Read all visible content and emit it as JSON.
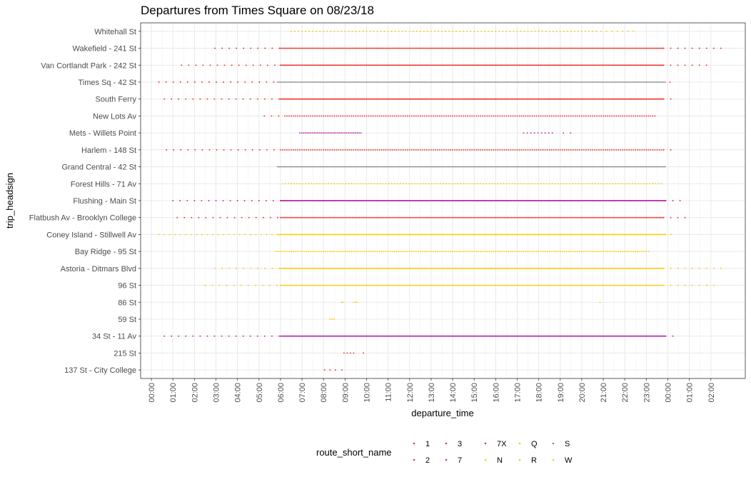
{
  "chart_data": {
    "type": "scatter",
    "title": "Departures from Times Square on 08/23/18",
    "xlabel": "departure_time",
    "ylabel": "trip_headsign",
    "x_ticks": [
      "00:00",
      "01:00",
      "02:00",
      "03:00",
      "04:00",
      "05:00",
      "06:00",
      "07:00",
      "08:00",
      "09:00",
      "10:00",
      "11:00",
      "12:00",
      "13:00",
      "14:00",
      "15:00",
      "16:00",
      "17:00",
      "18:00",
      "19:00",
      "20:00",
      "21:00",
      "22:00",
      "23:00",
      "00:00",
      "01:00",
      "02:00"
    ],
    "xlim_hours": [
      -0.5,
      27.6
    ],
    "categories": [
      "137 St - City College",
      "215 St",
      "34 St - 11 Av",
      "59 St",
      "86 St",
      "96 St",
      "Astoria - Ditmars Blvd",
      "Bay Ridge - 95 St",
      "Coney Island - Stillwell Av",
      "Flatbush Av - Brooklyn College",
      "Flushing - Main St",
      "Forest Hills - 71 Av",
      "Grand Central - 42 St",
      "Harlem - 148 St",
      "Mets - Willets Point",
      "New Lots Av",
      "South Ferry",
      "Times Sq - 42 St",
      "Van Cortlandt Park - 242 St",
      "Wakefield - 241 St",
      "Whitehall St"
    ],
    "grid": true,
    "legend": {
      "title": "route_short_name",
      "position": "bottom",
      "entries": [
        {
          "name": "1",
          "color": "#ee352e"
        },
        {
          "name": "2",
          "color": "#ee352e"
        },
        {
          "name": "3",
          "color": "#ee352e"
        },
        {
          "name": "7",
          "color": "#b933ad"
        },
        {
          "name": "7X",
          "color": "#b933ad"
        },
        {
          "name": "N",
          "color": "#fccc0a"
        },
        {
          "name": "Q",
          "color": "#fccc0a"
        },
        {
          "name": "R",
          "color": "#fccc0a"
        },
        {
          "name": "S",
          "color": "#808183"
        },
        {
          "name": "W",
          "color": "#fccc0a"
        }
      ]
    },
    "series": [
      {
        "headsign": "Whitehall St",
        "route": "R",
        "color": "#fccc0a",
        "segments": [
          {
            "from": 6.5,
            "to": 20.75,
            "interval_min": 10
          },
          {
            "from": 20.9,
            "to": 22.4,
            "interval_min": 15
          }
        ]
      },
      {
        "headsign": "Wakefield - 241 St",
        "route": "2",
        "color": "#ee352e",
        "segments": [
          {
            "from": 2.95,
            "to": 6.0,
            "interval_min": 20
          },
          {
            "from": 6.0,
            "to": 23.8,
            "interval_min": 4
          },
          {
            "from": 23.8,
            "to": 26.6,
            "interval_min": 20
          }
        ]
      },
      {
        "headsign": "Van Cortlandt Park - 242 St",
        "route": "1",
        "color": "#ee352e",
        "segments": [
          {
            "from": 1.4,
            "to": 6.0,
            "interval_min": 20
          },
          {
            "from": 6.0,
            "to": 23.8,
            "interval_min": 3
          },
          {
            "from": 23.8,
            "to": 25.9,
            "interval_min": 20
          }
        ]
      },
      {
        "headsign": "Times Sq - 42 St",
        "route": "1",
        "color": "#ee352e",
        "segments": [
          {
            "from": 0.35,
            "to": 5.8,
            "interval_min": 20
          },
          {
            "from": 24.1,
            "to": 24.1,
            "interval_min": 20
          }
        ]
      },
      {
        "headsign": "Times Sq - 42 St",
        "route": "S",
        "color": "#808183",
        "segments": [
          {
            "from": 5.85,
            "to": 23.9,
            "interval_min": 1
          }
        ]
      },
      {
        "headsign": "South Ferry",
        "route": "1",
        "color": "#ee352e",
        "segments": [
          {
            "from": 0.6,
            "to": 6.0,
            "interval_min": 20
          },
          {
            "from": 6.0,
            "to": 23.8,
            "interval_min": 3
          },
          {
            "from": 23.8,
            "to": 24.4,
            "interval_min": 20
          }
        ]
      },
      {
        "headsign": "New Lots Av",
        "route": "3",
        "color": "#ee352e",
        "segments": [
          {
            "from": 5.25,
            "to": 6.2,
            "interval_min": 20
          },
          {
            "from": 6.2,
            "to": 23.4,
            "interval_min": 6
          }
        ]
      },
      {
        "headsign": "Mets - Willets Point",
        "route": "7X",
        "color": "#b933ad",
        "segments": [
          {
            "from": 6.9,
            "to": 9.8,
            "interval_min": 5
          },
          {
            "from": 17.3,
            "to": 18.7,
            "interval_min": 10
          },
          {
            "from": 19.15,
            "to": 19.5,
            "interval_min": 20
          }
        ]
      },
      {
        "headsign": "Harlem - 148 St",
        "route": "3",
        "color": "#ee352e",
        "segments": [
          {
            "from": 0.7,
            "to": 6.0,
            "interval_min": 20
          },
          {
            "from": 6.0,
            "to": 23.8,
            "interval_min": 6
          },
          {
            "from": 23.8,
            "to": 24.4,
            "interval_min": 20
          }
        ]
      },
      {
        "headsign": "Grand Central - 42 St",
        "route": "S",
        "color": "#808183",
        "segments": [
          {
            "from": 5.85,
            "to": 23.9,
            "interval_min": 1
          }
        ]
      },
      {
        "headsign": "Forest Hills - 71 Av",
        "route": "R",
        "color": "#fccc0a",
        "segments": [
          {
            "from": 6.1,
            "to": 23.7,
            "interval_min": 8
          }
        ]
      },
      {
        "headsign": "Flushing - Main St",
        "route": "7",
        "color": "#b933ad",
        "segments": [
          {
            "from": 1.0,
            "to": 6.0,
            "interval_min": 20
          },
          {
            "from": 6.0,
            "to": 23.9,
            "interval_min": 2
          },
          {
            "from": 23.9,
            "to": 24.8,
            "interval_min": 20
          }
        ]
      },
      {
        "headsign": "Flatbush Av - Brooklyn College",
        "route": "2",
        "color": "#ee352e",
        "segments": [
          {
            "from": 1.2,
            "to": 6.0,
            "interval_min": 20
          },
          {
            "from": 6.0,
            "to": 23.8,
            "interval_min": 4
          },
          {
            "from": 23.8,
            "to": 24.9,
            "interval_min": 20
          }
        ]
      },
      {
        "headsign": "Coney Island - Stillwell Av",
        "route": "N",
        "color": "#fccc0a",
        "segments": [
          {
            "from": 0.35,
            "to": 5.9,
            "interval_min": 15
          },
          {
            "from": 5.9,
            "to": 23.9,
            "interval_min": 3
          },
          {
            "from": 23.9,
            "to": 24.2,
            "interval_min": 15
          }
        ]
      },
      {
        "headsign": "Bay Ridge - 95 St",
        "route": "R",
        "color": "#fccc0a",
        "segments": [
          {
            "from": 5.8,
            "to": 23.1,
            "interval_min": 6
          }
        ]
      },
      {
        "headsign": "Astoria - Ditmars Blvd",
        "route": "N",
        "color": "#fccc0a",
        "segments": [
          {
            "from": 2.95,
            "to": 6.0,
            "interval_min": 20
          },
          {
            "from": 6.0,
            "to": 23.8,
            "interval_min": 3
          },
          {
            "from": 23.8,
            "to": 26.6,
            "interval_min": 20
          }
        ]
      },
      {
        "headsign": "96 St",
        "route": "Q",
        "color": "#fccc0a",
        "segments": [
          {
            "from": 2.5,
            "to": 6.0,
            "interval_min": 20
          },
          {
            "from": 6.0,
            "to": 23.8,
            "interval_min": 4
          },
          {
            "from": 23.8,
            "to": 26.2,
            "interval_min": 20
          }
        ]
      },
      {
        "headsign": "86 St",
        "route": "Q",
        "color": "#fccc0a",
        "points": [
          8.85,
          8.9,
          9.4,
          9.5,
          9.55,
          20.85
        ]
      },
      {
        "headsign": "59 St",
        "route": "N",
        "color": "#fccc0a",
        "points": [
          8.3,
          8.4,
          8.5
        ]
      },
      {
        "headsign": "34 St - 11 Av",
        "route": "7",
        "color": "#b933ad",
        "segments": [
          {
            "from": 0.6,
            "to": 6.0,
            "interval_min": 20
          },
          {
            "from": 6.0,
            "to": 23.9,
            "interval_min": 2
          },
          {
            "from": 23.9,
            "to": 24.4,
            "interval_min": 20
          }
        ]
      },
      {
        "headsign": "215 St",
        "route": "1",
        "color": "#ee352e",
        "points": [
          8.95,
          9.1,
          9.25,
          9.4,
          9.85
        ]
      },
      {
        "headsign": "137 St - City College",
        "route": "1",
        "color": "#ee352e",
        "points": [
          8.05,
          8.3,
          8.55,
          8.85
        ]
      }
    ]
  }
}
